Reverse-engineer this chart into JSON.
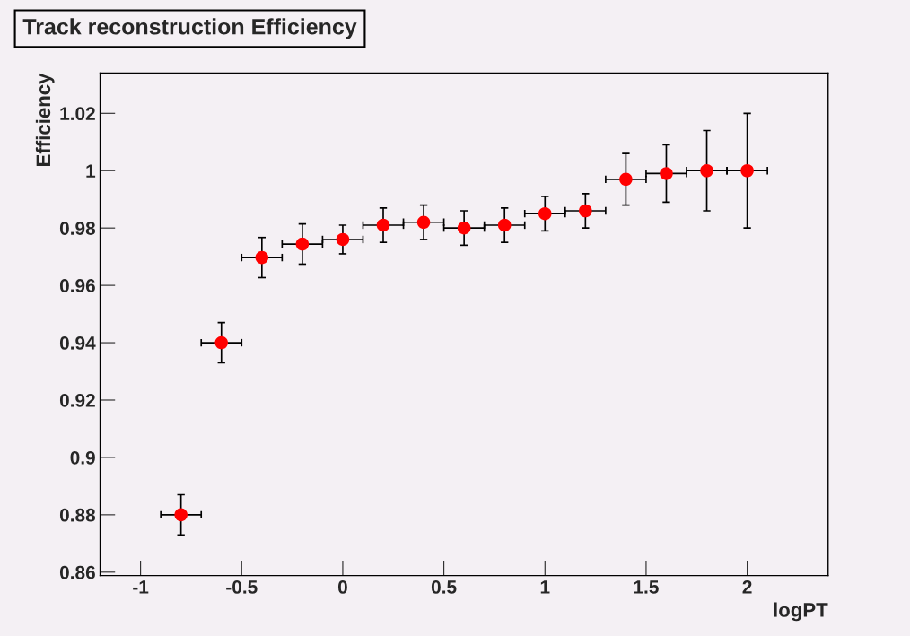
{
  "chart_data": {
    "type": "scatter",
    "title": "Track reconstruction Efficiency",
    "xlabel": "logPT",
    "ylabel": "Efficiency",
    "x": [
      -0.8,
      -0.6,
      -0.4,
      -0.2,
      0,
      0.2,
      0.4,
      0.6,
      0.8,
      1.0,
      1.2,
      1.4,
      1.6,
      1.8,
      2.0
    ],
    "series": [
      {
        "color": "#ff0000",
        "values": [
          0.88,
          0.94,
          0.9697,
          0.9744,
          0.976,
          0.981,
          0.982,
          0.98,
          0.981,
          0.985,
          0.986,
          0.997,
          0.999,
          1.0,
          1.0
        ],
        "errors": [
          0.007,
          0.007,
          0.007,
          0.007,
          0.005,
          0.006,
          0.006,
          0.006,
          0.006,
          0.006,
          0.006,
          0.009,
          0.01,
          0.014,
          0.02
        ],
        "xerrors": [
          0.1,
          0.1,
          0.1,
          0.1,
          0.1,
          0.1,
          0.1,
          0.1,
          0.1,
          0.1,
          0.1,
          0.1,
          0.1,
          0.1,
          0.1
        ]
      }
    ],
    "xlim": [
      -1.2,
      2.4
    ],
    "ylim": [
      0.8588,
      1.034
    ],
    "xticks": [
      -1,
      -0.5,
      0,
      0.5,
      1,
      1.5,
      2
    ],
    "yticks": [
      0.86,
      0.88,
      0.9,
      0.92,
      0.94,
      0.96,
      0.98,
      1,
      1.02
    ],
    "grid": false,
    "legend": false,
    "marker": "circle"
  }
}
